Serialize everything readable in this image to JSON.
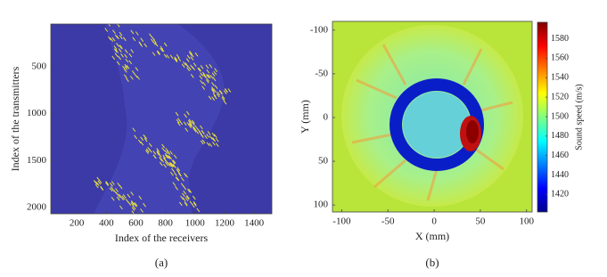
{
  "chart_data": [
    {
      "type": "heatmap",
      "caption": "(a)",
      "xlabel": "Index of the receivers",
      "ylabel": "Index of the transmitters",
      "xlim": [
        24,
        1520
      ],
      "xticks": [
        200,
        400,
        600,
        800,
        1000,
        1200,
        1400
      ],
      "ylim": [
        2066,
        44
      ],
      "yticks": [
        500,
        1000,
        1500,
        2000
      ]
    },
    {
      "type": "heatmap",
      "caption": "(b)",
      "xlabel": "X (mm)",
      "ylabel": "Y (mm)",
      "xlim": [
        -110,
        106
      ],
      "xticks": [
        -100,
        -50,
        0,
        50,
        100
      ],
      "ylim": [
        108,
        -110
      ],
      "yticks": [
        -100,
        -50,
        0,
        50,
        100
      ],
      "colorbar": {
        "label": "Sound speed (m/s)",
        "colormap": "jet",
        "lim": [
          1402,
          1597
        ],
        "ticks": [
          1420,
          1440,
          1460,
          1480,
          1500,
          1520,
          1540,
          1560,
          1580
        ]
      }
    }
  ]
}
